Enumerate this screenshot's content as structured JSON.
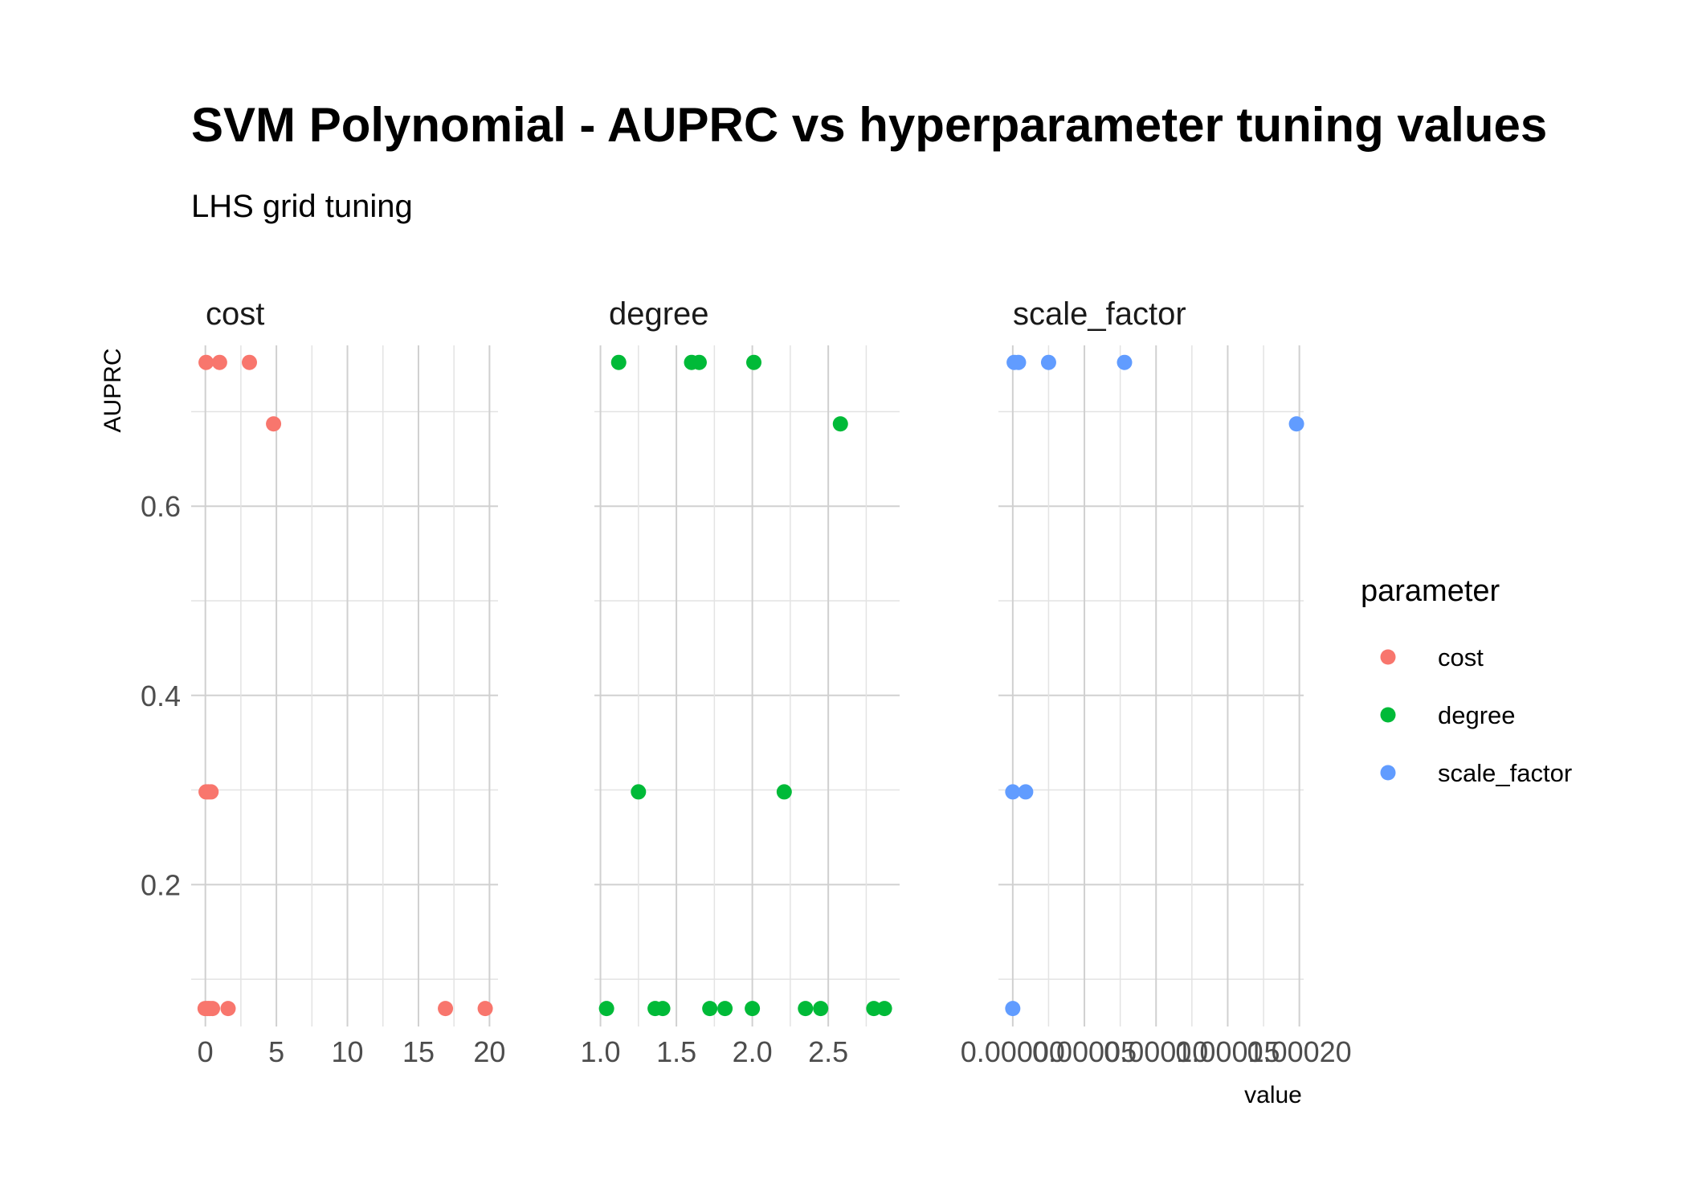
{
  "chart_data": {
    "type": "scatter",
    "title": "SVM Polynomial - AUPRC vs hyperparameter tuning values",
    "subtitle": "LHS grid tuning",
    "xlabel": "value",
    "ylabel": "AUPRC",
    "legend": {
      "title": "parameter",
      "position": "right"
    },
    "grid": true,
    "y_ticks": [
      "0.2",
      "0.4",
      "0.6"
    ],
    "ylim": [
      0.05,
      0.77
    ],
    "colors": {
      "cost": "#F8766D",
      "degree": "#00BA38",
      "scale_factor": "#619CFF"
    },
    "panels": [
      {
        "name": "cost",
        "xlim": [
          -1,
          20.6
        ],
        "x_ticks": [
          0,
          5,
          10,
          15,
          20
        ],
        "x_tick_labels": [
          "0",
          "5",
          "10",
          "15",
          "20"
        ],
        "points": [
          [
            0.05,
            0.752
          ],
          [
            1.0,
            0.752
          ],
          [
            3.1,
            0.752
          ],
          [
            4.8,
            0.687
          ],
          [
            0.05,
            0.298
          ],
          [
            0.2,
            0.298
          ],
          [
            0.4,
            0.298
          ],
          [
            -0.02,
            0.069
          ],
          [
            0.15,
            0.069
          ],
          [
            0.3,
            0.069
          ],
          [
            0.5,
            0.069
          ],
          [
            1.6,
            0.069
          ],
          [
            16.9,
            0.069
          ],
          [
            19.7,
            0.069
          ]
        ]
      },
      {
        "name": "degree",
        "xlim": [
          0.96,
          2.97
        ],
        "x_ticks": [
          1.0,
          1.5,
          2.0,
          2.5
        ],
        "x_tick_labels": [
          "1.0",
          "1.5",
          "2.0",
          "2.5"
        ],
        "points": [
          [
            1.12,
            0.752
          ],
          [
            1.6,
            0.752
          ],
          [
            1.65,
            0.752
          ],
          [
            2.01,
            0.752
          ],
          [
            2.58,
            0.687
          ],
          [
            1.25,
            0.298
          ],
          [
            2.21,
            0.298
          ],
          [
            1.04,
            0.069
          ],
          [
            1.36,
            0.069
          ],
          [
            1.41,
            0.069
          ],
          [
            1.72,
            0.069
          ],
          [
            1.82,
            0.069
          ],
          [
            2.0,
            0.069
          ],
          [
            2.35,
            0.069
          ],
          [
            2.45,
            0.069
          ],
          [
            2.8,
            0.069
          ],
          [
            2.87,
            0.069
          ]
        ]
      },
      {
        "name": "scale_factor",
        "xlim": [
          -1e-05,
          0.000203
        ],
        "x_ticks": [
          0,
          5e-05,
          0.0001,
          0.00015,
          0.0002
        ],
        "x_tick_labels": [
          "0.00000",
          "0.00005",
          "0.00010",
          "0.00015",
          "0.00020"
        ],
        "points": [
          [
            1e-06,
            0.752
          ],
          [
            4e-06,
            0.752
          ],
          [
            2.5e-05,
            0.752
          ],
          [
            7.8e-05,
            0.752
          ],
          [
            0.000198,
            0.687
          ],
          [
            0.0,
            0.298
          ],
          [
            9e-06,
            0.298
          ],
          [
            0.0,
            0.069
          ]
        ]
      }
    ]
  }
}
